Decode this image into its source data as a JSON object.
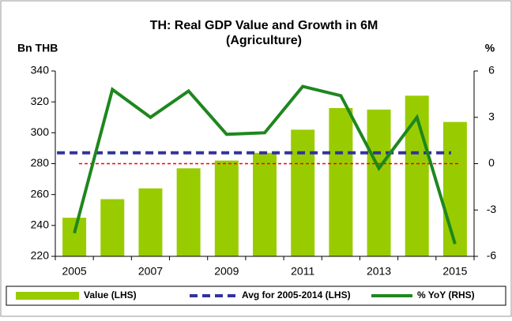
{
  "chart_data": {
    "type": "bar_line",
    "title": "TH: Real GDP Value and Growth in 6M",
    "subtitle": "(Agriculture)",
    "y_label": "Bn THB",
    "y2_label": "%",
    "categories": [
      "2005",
      null,
      "2007",
      null,
      "2009",
      null,
      "2011",
      null,
      "2013",
      null,
      "2015"
    ],
    "ylim": [
      220,
      340
    ],
    "yticks": [
      220,
      240,
      260,
      280,
      300,
      320,
      340
    ],
    "y2lim": [
      -6,
      6
    ],
    "y2ticks": [
      -6,
      -3,
      0,
      3,
      6
    ],
    "series": [
      {
        "name": "Value (LHS)",
        "color": "#99cc00",
        "values": [
          245,
          257,
          264,
          277,
          282,
          287,
          302,
          316,
          315,
          324,
          307
        ]
      },
      {
        "name": "Avg for 2005-2014 (LHS)",
        "color": "#333399",
        "value": 287
      },
      {
        "name": "% YoY (RHS)",
        "color": "#1e871e",
        "axis": "y2",
        "values": [
          -4.5,
          4.8,
          3.0,
          4.7,
          1.9,
          2.0,
          5.0,
          4.4,
          -0.3,
          3.0,
          -5.2
        ]
      }
    ],
    "reference_line": {
      "value": 0,
      "axis": "y2",
      "color": "#ff0000"
    }
  }
}
